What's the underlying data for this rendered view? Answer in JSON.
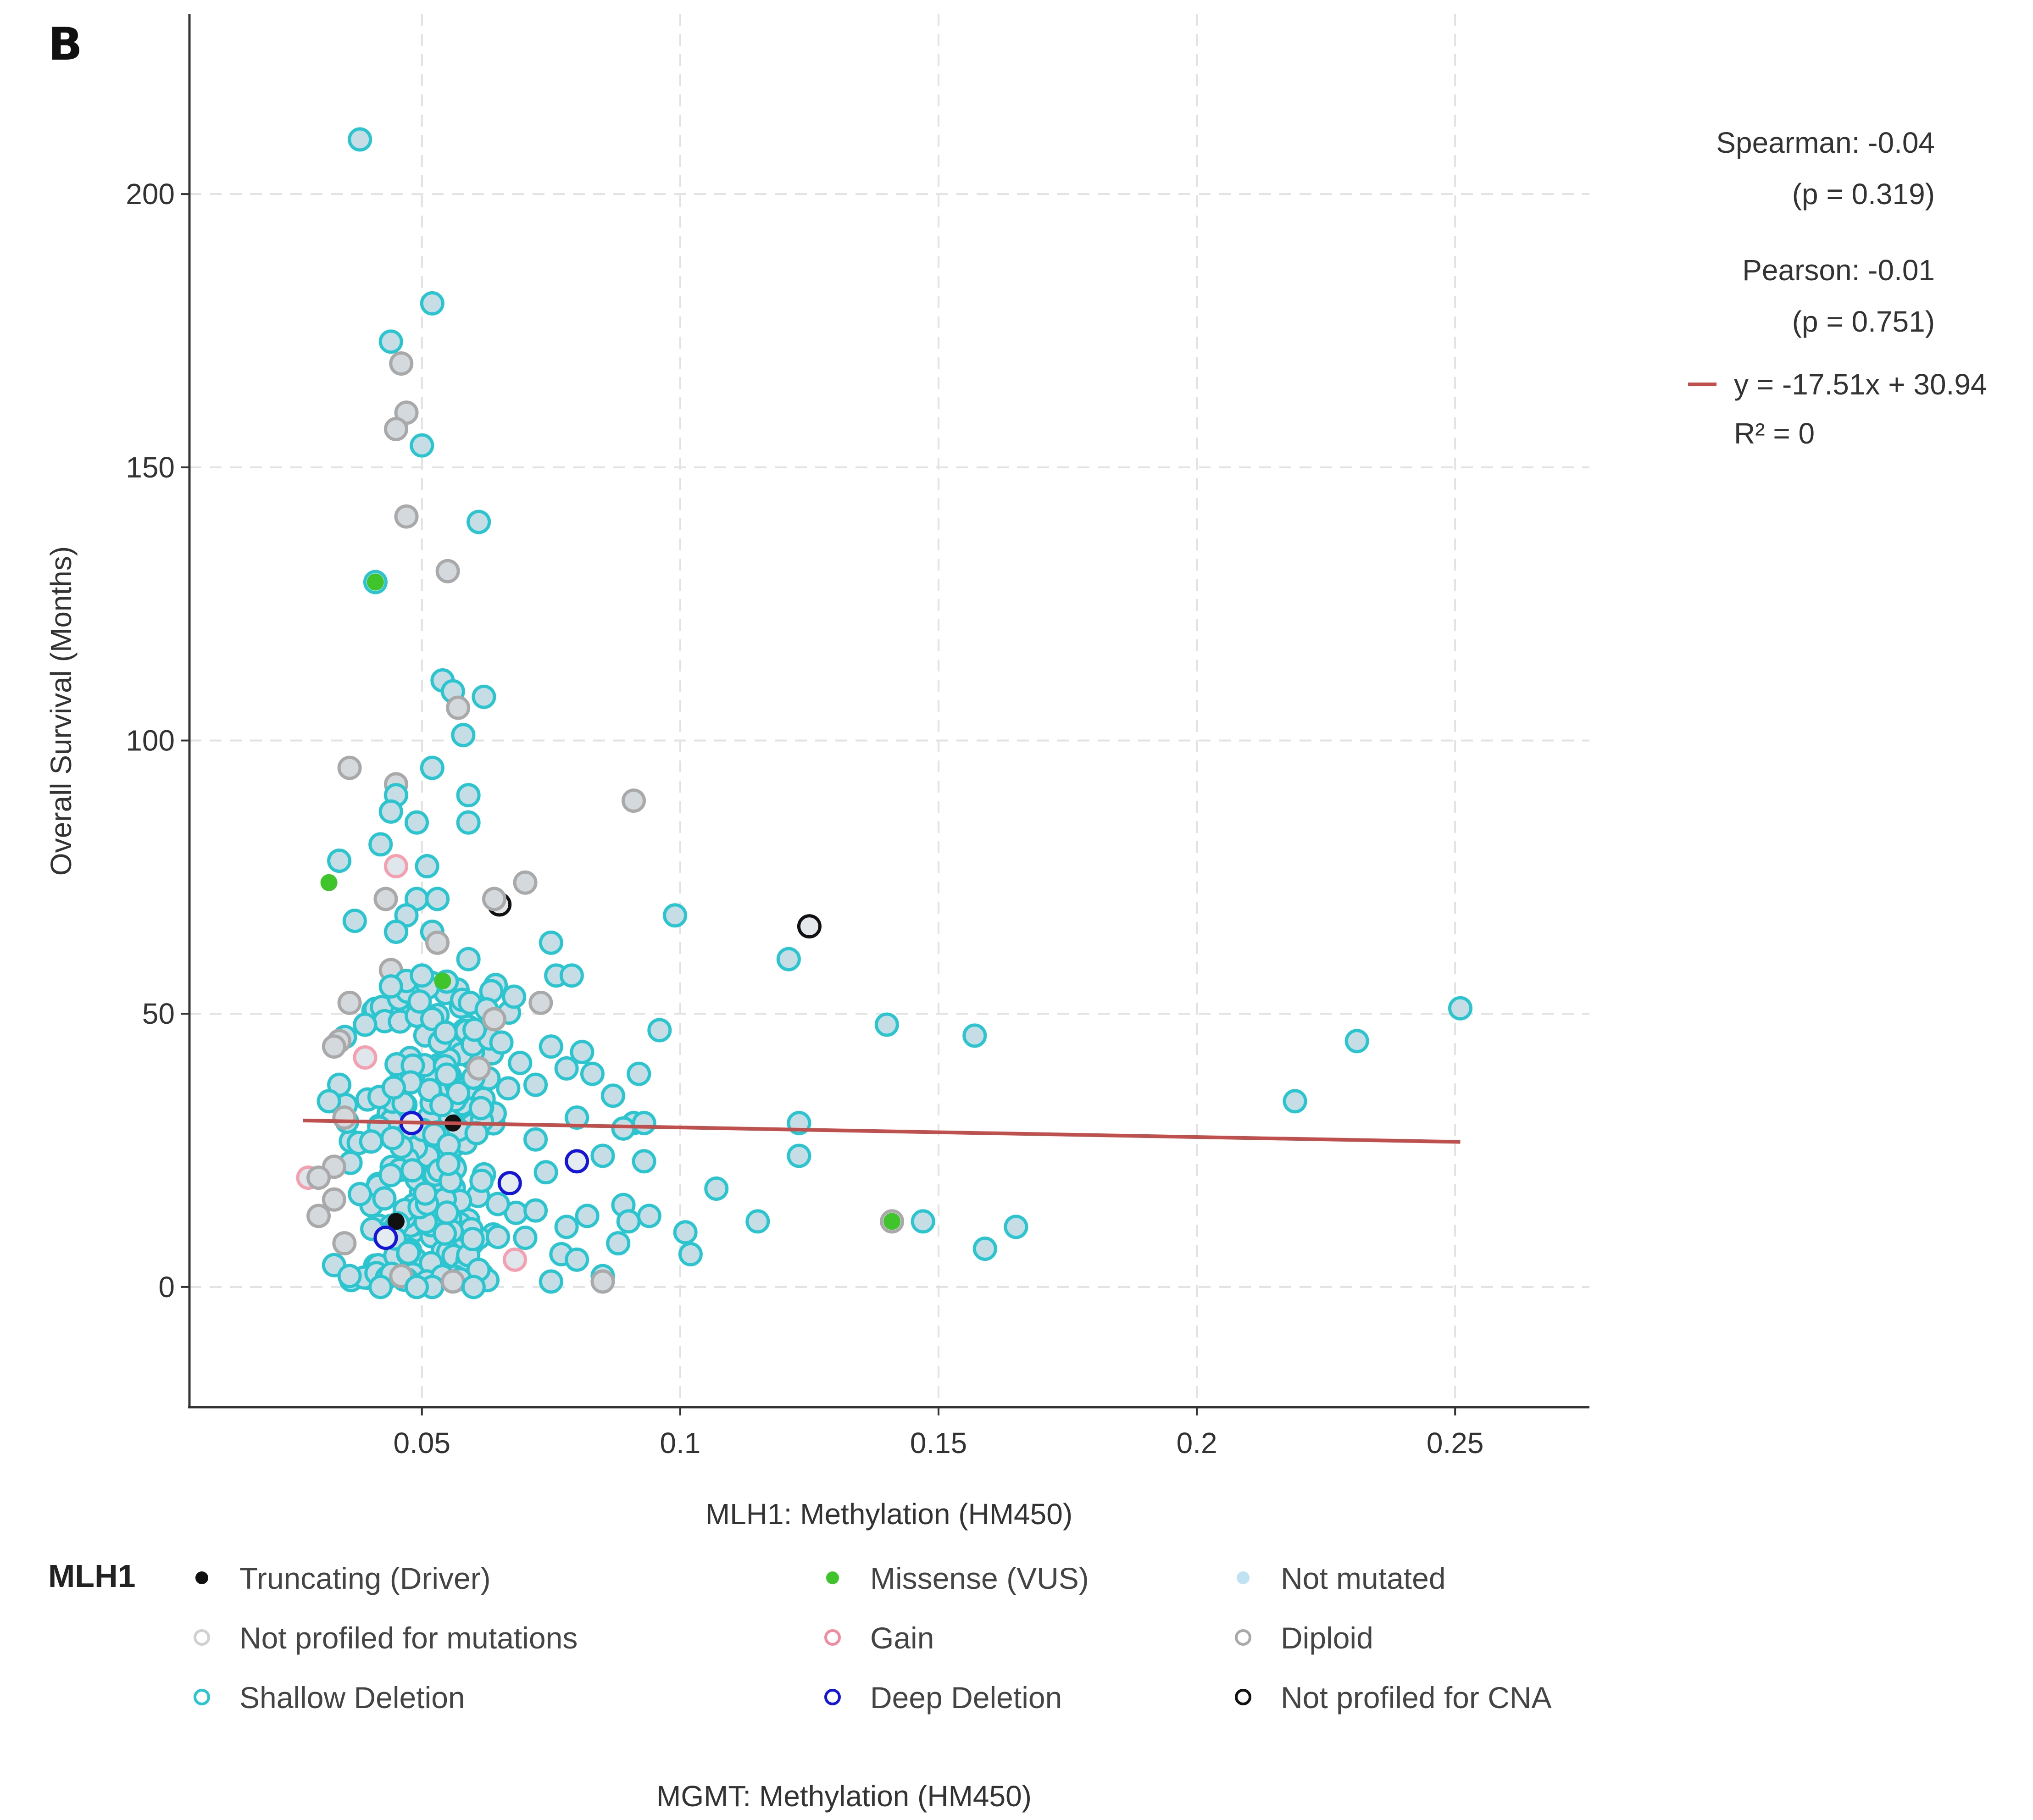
{
  "panel_label": "B",
  "chart_data": {
    "type": "scatter",
    "xlabel": "MLH1: Methylation (HM450)",
    "ylabel": "Overall Survival (Months)",
    "xlim": [
      0.005,
      0.276
    ],
    "ylim": [
      -22,
      233
    ],
    "x_ticks": [
      0.05,
      0.1,
      0.15,
      0.2,
      0.25
    ],
    "x_tick_labels": [
      "0.05",
      "0.1",
      "0.15",
      "0.2",
      "0.25"
    ],
    "y_ticks": [
      0,
      50,
      100,
      150,
      200
    ],
    "y_tick_labels": [
      "0",
      "50",
      "100",
      "150",
      "200"
    ],
    "grid": true,
    "stats": {
      "spearman_label": "Spearman: -0.04",
      "spearman_p": "(p = 0.319)",
      "pearson_label": "Pearson: -0.01",
      "pearson_p": "(p = 0.751)",
      "regression_label": "y = -17.51x + 30.94",
      "r2_label": "R² = 0"
    },
    "regression": {
      "slope": -17.51,
      "intercept": 30.94,
      "x_range": [
        0.027,
        0.251
      ],
      "color": "#c0504d"
    },
    "categories": {
      "shallow": {
        "stroke": "#2bc5d0",
        "fill": "#c6dde6"
      },
      "diploid": {
        "stroke": "#a9a9a9",
        "fill": "#d3d9dd"
      },
      "gain": {
        "stroke": "#f4a0b0",
        "fill": "#dfe7ec"
      },
      "deep": {
        "stroke": "#1515d8",
        "fill": "#e4ecf2"
      },
      "noprof_cna": {
        "stroke": "#111111",
        "fill": "#e4e8ea"
      },
      "missense": {
        "stroke": "#3fc42c",
        "fill": "#3fc42c"
      },
      "truncating": {
        "stroke": "#111111",
        "fill": "#111111"
      }
    },
    "points": [
      {
        "x": 0.038,
        "y": 210,
        "c": "shallow"
      },
      {
        "x": 0.052,
        "y": 180,
        "c": "shallow"
      },
      {
        "x": 0.044,
        "y": 173,
        "c": "shallow"
      },
      {
        "x": 0.046,
        "y": 169,
        "c": "diploid"
      },
      {
        "x": 0.047,
        "y": 160,
        "c": "diploid"
      },
      {
        "x": 0.045,
        "y": 157,
        "c": "diploid"
      },
      {
        "x": 0.05,
        "y": 154,
        "c": "shallow"
      },
      {
        "x": 0.047,
        "y": 141,
        "c": "diploid"
      },
      {
        "x": 0.061,
        "y": 140,
        "c": "shallow"
      },
      {
        "x": 0.055,
        "y": 131,
        "c": "diploid"
      },
      {
        "x": 0.041,
        "y": 129,
        "c": "shallow"
      },
      {
        "x": 0.041,
        "y": 129,
        "c": "missense"
      },
      {
        "x": 0.054,
        "y": 111,
        "c": "shallow"
      },
      {
        "x": 0.056,
        "y": 109,
        "c": "shallow"
      },
      {
        "x": 0.062,
        "y": 108,
        "c": "shallow"
      },
      {
        "x": 0.057,
        "y": 106,
        "c": "diploid"
      },
      {
        "x": 0.058,
        "y": 101,
        "c": "shallow"
      },
      {
        "x": 0.036,
        "y": 95,
        "c": "diploid"
      },
      {
        "x": 0.052,
        "y": 95,
        "c": "shallow"
      },
      {
        "x": 0.045,
        "y": 92,
        "c": "diploid"
      },
      {
        "x": 0.059,
        "y": 90,
        "c": "shallow"
      },
      {
        "x": 0.045,
        "y": 90,
        "c": "shallow"
      },
      {
        "x": 0.044,
        "y": 87,
        "c": "shallow"
      },
      {
        "x": 0.091,
        "y": 89,
        "c": "diploid"
      },
      {
        "x": 0.049,
        "y": 85,
        "c": "shallow"
      },
      {
        "x": 0.059,
        "y": 85,
        "c": "shallow"
      },
      {
        "x": 0.042,
        "y": 81,
        "c": "shallow"
      },
      {
        "x": 0.034,
        "y": 78,
        "c": "shallow"
      },
      {
        "x": 0.045,
        "y": 77,
        "c": "gain"
      },
      {
        "x": 0.051,
        "y": 77,
        "c": "shallow"
      },
      {
        "x": 0.032,
        "y": 74,
        "c": "missense"
      },
      {
        "x": 0.07,
        "y": 74,
        "c": "diploid"
      },
      {
        "x": 0.065,
        "y": 70,
        "c": "noprof_cna"
      },
      {
        "x": 0.043,
        "y": 71,
        "c": "diploid"
      },
      {
        "x": 0.049,
        "y": 71,
        "c": "shallow"
      },
      {
        "x": 0.053,
        "y": 71,
        "c": "shallow"
      },
      {
        "x": 0.064,
        "y": 71,
        "c": "diploid"
      },
      {
        "x": 0.047,
        "y": 68,
        "c": "shallow"
      },
      {
        "x": 0.099,
        "y": 68,
        "c": "shallow"
      },
      {
        "x": 0.037,
        "y": 67,
        "c": "shallow"
      },
      {
        "x": 0.125,
        "y": 66,
        "c": "noprof_cna"
      },
      {
        "x": 0.052,
        "y": 65,
        "c": "shallow"
      },
      {
        "x": 0.045,
        "y": 65,
        "c": "shallow"
      },
      {
        "x": 0.053,
        "y": 63,
        "c": "diploid"
      },
      {
        "x": 0.075,
        "y": 63,
        "c": "shallow"
      },
      {
        "x": 0.121,
        "y": 60,
        "c": "shallow"
      },
      {
        "x": 0.059,
        "y": 60,
        "c": "shallow"
      },
      {
        "x": 0.044,
        "y": 58,
        "c": "diploid"
      },
      {
        "x": 0.076,
        "y": 57,
        "c": "shallow"
      },
      {
        "x": 0.079,
        "y": 57,
        "c": "shallow"
      },
      {
        "x": 0.054,
        "y": 56,
        "c": "missense"
      },
      {
        "x": 0.047,
        "y": 56,
        "c": "shallow"
      },
      {
        "x": 0.044,
        "y": 55,
        "c": "shallow"
      },
      {
        "x": 0.05,
        "y": 57,
        "c": "shallow"
      },
      {
        "x": 0.036,
        "y": 52,
        "c": "diploid"
      },
      {
        "x": 0.073,
        "y": 52,
        "c": "diploid"
      },
      {
        "x": 0.251,
        "y": 51,
        "c": "shallow"
      },
      {
        "x": 0.064,
        "y": 49,
        "c": "diploid"
      },
      {
        "x": 0.14,
        "y": 48,
        "c": "shallow"
      },
      {
        "x": 0.039,
        "y": 48,
        "c": "shallow"
      },
      {
        "x": 0.096,
        "y": 47,
        "c": "shallow"
      },
      {
        "x": 0.157,
        "y": 46,
        "c": "shallow"
      },
      {
        "x": 0.034,
        "y": 45,
        "c": "diploid"
      },
      {
        "x": 0.231,
        "y": 45,
        "c": "shallow"
      },
      {
        "x": 0.075,
        "y": 44,
        "c": "shallow"
      },
      {
        "x": 0.081,
        "y": 43,
        "c": "shallow"
      },
      {
        "x": 0.033,
        "y": 44,
        "c": "diploid"
      },
      {
        "x": 0.039,
        "y": 42,
        "c": "gain"
      },
      {
        "x": 0.069,
        "y": 41,
        "c": "shallow"
      },
      {
        "x": 0.078,
        "y": 40,
        "c": "shallow"
      },
      {
        "x": 0.083,
        "y": 39,
        "c": "shallow"
      },
      {
        "x": 0.092,
        "y": 39,
        "c": "shallow"
      },
      {
        "x": 0.061,
        "y": 40,
        "c": "diploid"
      },
      {
        "x": 0.072,
        "y": 37,
        "c": "shallow"
      },
      {
        "x": 0.087,
        "y": 35,
        "c": "shallow"
      },
      {
        "x": 0.034,
        "y": 37,
        "c": "shallow"
      },
      {
        "x": 0.032,
        "y": 34,
        "c": "shallow"
      },
      {
        "x": 0.219,
        "y": 34,
        "c": "shallow"
      },
      {
        "x": 0.091,
        "y": 30,
        "c": "shallow"
      },
      {
        "x": 0.123,
        "y": 30,
        "c": "shallow"
      },
      {
        "x": 0.048,
        "y": 30,
        "c": "deep"
      },
      {
        "x": 0.056,
        "y": 30,
        "c": "truncating"
      },
      {
        "x": 0.093,
        "y": 30,
        "c": "shallow"
      },
      {
        "x": 0.089,
        "y": 29,
        "c": "shallow"
      },
      {
        "x": 0.072,
        "y": 27,
        "c": "shallow"
      },
      {
        "x": 0.08,
        "y": 31,
        "c": "shallow"
      },
      {
        "x": 0.035,
        "y": 31,
        "c": "diploid"
      },
      {
        "x": 0.093,
        "y": 23,
        "c": "shallow"
      },
      {
        "x": 0.085,
        "y": 24,
        "c": "shallow"
      },
      {
        "x": 0.08,
        "y": 23,
        "c": "deep"
      },
      {
        "x": 0.123,
        "y": 24,
        "c": "shallow"
      },
      {
        "x": 0.033,
        "y": 22,
        "c": "diploid"
      },
      {
        "x": 0.074,
        "y": 21,
        "c": "shallow"
      },
      {
        "x": 0.028,
        "y": 20,
        "c": "gain"
      },
      {
        "x": 0.03,
        "y": 20,
        "c": "diploid"
      },
      {
        "x": 0.067,
        "y": 19,
        "c": "deep"
      },
      {
        "x": 0.107,
        "y": 18,
        "c": "shallow"
      },
      {
        "x": 0.038,
        "y": 17,
        "c": "shallow"
      },
      {
        "x": 0.033,
        "y": 16,
        "c": "diploid"
      },
      {
        "x": 0.089,
        "y": 15,
        "c": "shallow"
      },
      {
        "x": 0.072,
        "y": 14,
        "c": "shallow"
      },
      {
        "x": 0.09,
        "y": 12,
        "c": "shallow"
      },
      {
        "x": 0.094,
        "y": 13,
        "c": "shallow"
      },
      {
        "x": 0.045,
        "y": 12,
        "c": "truncating"
      },
      {
        "x": 0.03,
        "y": 13,
        "c": "diploid"
      },
      {
        "x": 0.141,
        "y": 12,
        "c": "diploid"
      },
      {
        "x": 0.141,
        "y": 12,
        "c": "missense"
      },
      {
        "x": 0.147,
        "y": 12,
        "c": "shallow"
      },
      {
        "x": 0.115,
        "y": 12,
        "c": "shallow"
      },
      {
        "x": 0.165,
        "y": 11,
        "c": "shallow"
      },
      {
        "x": 0.078,
        "y": 11,
        "c": "shallow"
      },
      {
        "x": 0.082,
        "y": 13,
        "c": "shallow"
      },
      {
        "x": 0.101,
        "y": 10,
        "c": "shallow"
      },
      {
        "x": 0.043,
        "y": 9,
        "c": "deep"
      },
      {
        "x": 0.035,
        "y": 8,
        "c": "diploid"
      },
      {
        "x": 0.07,
        "y": 9,
        "c": "shallow"
      },
      {
        "x": 0.088,
        "y": 8,
        "c": "shallow"
      },
      {
        "x": 0.102,
        "y": 6,
        "c": "shallow"
      },
      {
        "x": 0.159,
        "y": 7,
        "c": "shallow"
      },
      {
        "x": 0.068,
        "y": 5,
        "c": "gain"
      },
      {
        "x": 0.077,
        "y": 6,
        "c": "shallow"
      },
      {
        "x": 0.08,
        "y": 5,
        "c": "shallow"
      },
      {
        "x": 0.033,
        "y": 4,
        "c": "shallow"
      },
      {
        "x": 0.085,
        "y": 2,
        "c": "shallow"
      },
      {
        "x": 0.085,
        "y": 1,
        "c": "diploid"
      },
      {
        "x": 0.036,
        "y": 2,
        "c": "shallow"
      },
      {
        "x": 0.042,
        "y": 0,
        "c": "shallow"
      },
      {
        "x": 0.075,
        "y": 1,
        "c": "shallow"
      },
      {
        "x": 0.046,
        "y": 2,
        "c": "diploid"
      },
      {
        "x": 0.052,
        "y": 0,
        "c": "shallow"
      },
      {
        "x": 0.049,
        "y": 0,
        "c": "shallow"
      },
      {
        "x": 0.056,
        "y": 1,
        "c": "diploid"
      },
      {
        "x": 0.06,
        "y": 0,
        "c": "shallow"
      }
    ],
    "cluster": {
      "category": "shallow",
      "x_center": 0.052,
      "x_spread": 0.012,
      "y_min": 1,
      "y_max": 56,
      "count": 230,
      "seed": 7
    }
  },
  "legend": {
    "title": "MLH1",
    "items": [
      {
        "label": "Truncating (Driver)",
        "marker": "filled",
        "color": "#111111"
      },
      {
        "label": "Missense (VUS)",
        "marker": "filled",
        "color": "#3fc42c"
      },
      {
        "label": "Not mutated",
        "marker": "filled",
        "color": "#bfe3f2"
      },
      {
        "label": "Not profiled for mutations",
        "marker": "ring",
        "color": "#d0d0d0"
      },
      {
        "label": "Gain",
        "marker": "ring",
        "color": "#f08ca0"
      },
      {
        "label": "Diploid",
        "marker": "ring",
        "color": "#a9a9a9"
      },
      {
        "label": "Shallow Deletion",
        "marker": "ring",
        "color": "#2bc5d0"
      },
      {
        "label": "Deep Deletion",
        "marker": "ring",
        "color": "#1515d8"
      },
      {
        "label": "Not profiled for CNA",
        "marker": "ring",
        "color": "#111111"
      }
    ]
  },
  "footer_label": "MGMT: Methylation (HM450)"
}
